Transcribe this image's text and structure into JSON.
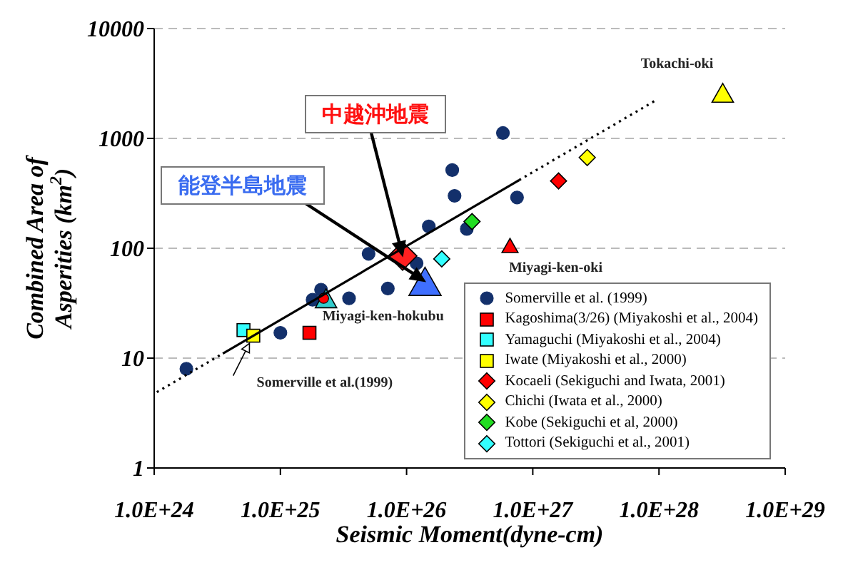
{
  "chart_data": {
    "type": "scatter",
    "xlabel": "Seismic Moment(dyne-cm)",
    "ylabel": "Combined Area of Asperities (km$^{2}$)",
    "log": "xy",
    "grid": "y",
    "legend": "bottom right",
    "xlim": [
      1e+24,
      1e+29
    ],
    "xticks": [
      {
        "value": 1e+24,
        "label": "1.0E+24"
      },
      {
        "value": 1e+25,
        "label": "1.0E+25"
      },
      {
        "value": 1e+26,
        "label": "1.0E+26"
      },
      {
        "value": 1e+27,
        "label": "1.0E+27"
      },
      {
        "value": 1e+28,
        "label": "1.0E+28"
      },
      {
        "value": 1e+29,
        "label": "1.0E+29"
      }
    ],
    "ylim": [
      1,
      10000
    ],
    "yticks": [
      1,
      10,
      100,
      1000,
      10000
    ],
    "series": [
      {
        "name": "Somerville et al. (1999)",
        "color": "#13306b",
        "marker": "circle",
        "x": [
          5.8e+26,
          2.3e+26,
          2.4e+26,
          7.5e+26,
          1.5e+26,
          3e+26,
          5e+25,
          1.2e+26,
          7.1e+25,
          2.1e+25,
          1.8e+25,
          3.5e+25,
          1e+25,
          1.8e+24
        ],
        "values": [
          1120,
          515,
          300,
          290,
          158,
          150,
          89,
          73,
          43,
          42,
          34,
          35,
          17,
          8
        ]
      },
      {
        "name": "Kagoshima(3/26) (Miyakoshi et al., 2004)",
        "color": "#ff0000",
        "marker": "square",
        "x": [
          1.7e+25
        ],
        "values": [
          17
        ]
      },
      {
        "name": "Yamaguchi  (Miyakoshi et al., 2004)",
        "color": "#33ffff",
        "marker": "square",
        "x": [
          5.1e+24
        ],
        "values": [
          18
        ]
      },
      {
        "name": "Iwate  (Miyakoshi et al., 2000)",
        "color": "#ffff00",
        "marker": "square",
        "x": [
          6.1e+24
        ],
        "values": [
          16
        ]
      },
      {
        "name": "Kocaeli (Sekiguchi and Iwata, 2001)",
        "color": "#ff0000",
        "marker": "diamond",
        "x": [
          1.6e+27
        ],
        "values": [
          410
        ]
      },
      {
        "name": "Chichi (Iwata et al., 2000)",
        "color": "#ffff00",
        "marker": "diamond",
        "x": [
          2.7e+27
        ],
        "values": [
          670
        ]
      },
      {
        "name": "Kobe (Sekiguchi et al, 2000)",
        "color": "#22dd22",
        "marker": "diamond",
        "x": [
          3.3e+26
        ],
        "values": [
          175
        ]
      },
      {
        "name": "Tottori (Sekiguchi et al., 2001)",
        "color": "#33ffff",
        "marker": "diamond",
        "x": [
          1.9e+26
        ],
        "values": [
          80
        ]
      },
      {
        "color": "#ff2020",
        "marker": "diamond",
        "x": [
          9.3e+25
        ],
        "values": [
          85
        ]
      },
      {
        "color": "#3f6fff",
        "marker": "triangle",
        "x": [
          1.4e+26
        ],
        "values": [
          50
        ]
      },
      {
        "color": "#ff0000",
        "marker": "triangle",
        "x": [
          6.6e+26
        ],
        "values": [
          106
        ]
      },
      {
        "color": "#ffff00",
        "marker": "triangle",
        "x": [
          3.2e+28
        ],
        "values": [
          2600
        ]
      },
      {
        "color": "#33cccc",
        "marker": "triangle",
        "x": [
          2.3e+25
        ],
        "values": [
          35
        ]
      },
      {
        "color": "#ff0000",
        "marker": "circle",
        "x": [
          2.2e+25
        ],
        "values": [
          35
        ]
      },
      {
        "type": "line",
        "color": "#000000",
        "marker": "none",
        "line_style": "solid",
        "x": [
          3.5e+24,
          7.8e+26
        ],
        "values": [
          11,
          417
        ]
      },
      {
        "type": "line",
        "color": "#000000",
        "marker": "none",
        "line_style": "dotted",
        "x": [
          1.05e+24,
          3.5e+24
        ],
        "values": [
          4.9,
          11
        ]
      },
      {
        "type": "line",
        "color": "#000000",
        "marker": "none",
        "line_style": "dotted",
        "x": [
          7.8e+26,
          9.3e+27
        ],
        "values": [
          417,
          2200
        ]
      }
    ],
    "annotations": [
      {
        "text": "中越沖地震",
        "x": 9.3e+25,
        "y": 85
      },
      {
        "text": "能登半島地震",
        "x": 1.4e+26,
        "y": 50
      },
      {
        "text": "Tokachi-oki",
        "x": 3.2e+28,
        "y": 2600
      },
      {
        "text": "Miyagi-ken-oki",
        "x": 6.6e+26,
        "y": 106
      },
      {
        "text": "Miyagi-ken-hokubu",
        "x": 2.3e+25,
        "y": 35
      },
      {
        "text": "Somerville et al.(1999)",
        "x": 6.1e+24,
        "y": 16
      }
    ]
  }
}
